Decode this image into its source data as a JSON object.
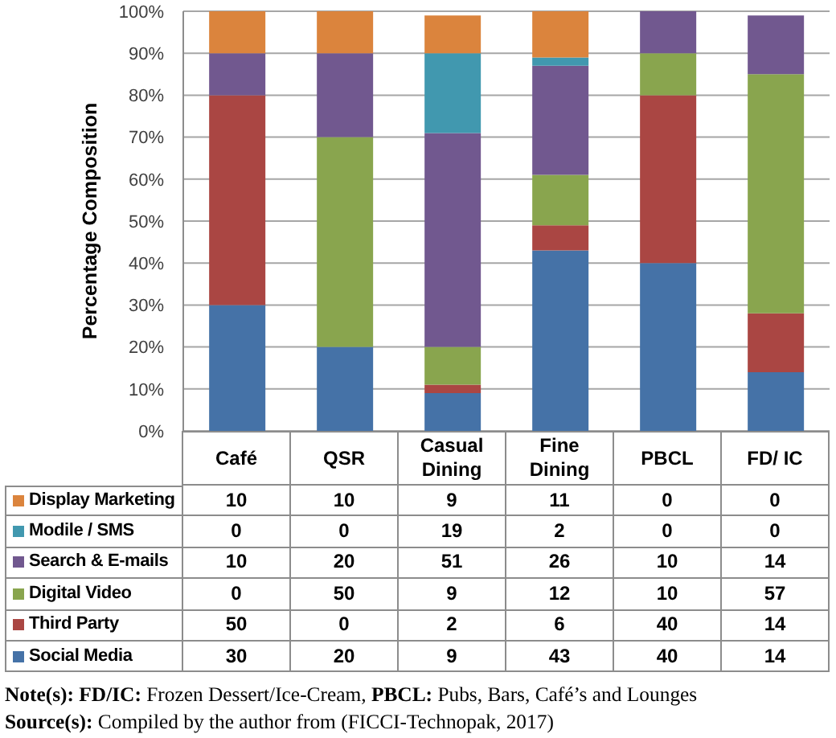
{
  "chart_data": {
    "type": "bar",
    "stacked": true,
    "categories": [
      "Café",
      "QSR",
      "Casual Dining",
      "Fine Dining",
      "PBCL",
      "FD/ IC"
    ],
    "series": [
      {
        "name": "Social Media",
        "color": "#4572a7",
        "values": [
          30,
          20,
          9,
          43,
          40,
          14
        ]
      },
      {
        "name": "Third Party",
        "color": "#aa4643",
        "values": [
          50,
          0,
          2,
          6,
          40,
          14
        ]
      },
      {
        "name": "Digital Video",
        "color": "#89a54e",
        "values": [
          0,
          50,
          9,
          12,
          10,
          57
        ]
      },
      {
        "name": "Search & E-mails",
        "color": "#71588f",
        "values": [
          10,
          20,
          51,
          26,
          10,
          14
        ]
      },
      {
        "name": "Modile / SMS",
        "color": "#4198af",
        "values": [
          0,
          0,
          19,
          2,
          0,
          0
        ]
      },
      {
        "name": "Display Marketing",
        "color": "#db843d",
        "values": [
          10,
          10,
          9,
          11,
          0,
          0
        ]
      }
    ],
    "ylabel": "Percentage Composition",
    "ylim": [
      0,
      100
    ],
    "yticks": [
      {
        "value": 0,
        "label": "0%"
      },
      {
        "value": 10,
        "label": "10%"
      },
      {
        "value": 20,
        "label": "20%"
      },
      {
        "value": 30,
        "label": "30%"
      },
      {
        "value": 40,
        "label": "40%"
      },
      {
        "value": 50,
        "label": "50%"
      },
      {
        "value": 60,
        "label": "60%"
      },
      {
        "value": 70,
        "label": "70%"
      },
      {
        "value": 80,
        "label": "80%"
      },
      {
        "value": 90,
        "label": "90%"
      },
      {
        "value": 100,
        "label": "100%"
      }
    ],
    "grid": "y",
    "legend": "bottom",
    "data_labels": true,
    "annotations": [
      "Note(s): FD/IC: Frozen Dessert/Ice-Cream, PBCL: Pubs, Bars, Café’s and Lounges",
      "Source(s): Compiled by the author from (FICCI-Technopak, 2017)"
    ]
  }
}
